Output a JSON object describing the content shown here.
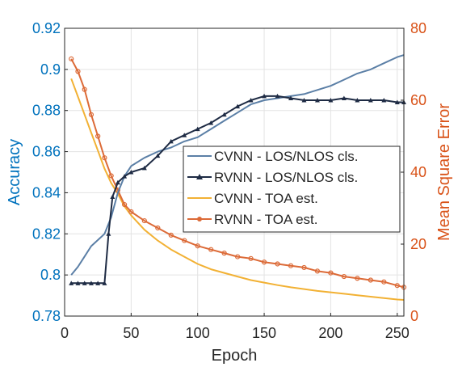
{
  "chart_data": {
    "type": "line",
    "xlabel": "Epoch",
    "ylabel_left": "Accuracy",
    "ylabel_right": "Mean Square Error",
    "xlim": [
      0,
      255
    ],
    "ylim_left": [
      0.78,
      0.92
    ],
    "ylim_right": [
      0,
      80
    ],
    "x_ticks": [
      "0",
      "50",
      "100",
      "150",
      "200",
      "250"
    ],
    "y_left_ticks": [
      "0.78",
      "0.8",
      "0.82",
      "0.84",
      "0.86",
      "0.88",
      "0.9",
      "0.92"
    ],
    "y_right_ticks": [
      "0",
      "20",
      "40",
      "60",
      "80"
    ],
    "grid": true,
    "legend_position": "center-right",
    "colors": {
      "left_axis": "#0072BD",
      "right_axis": "#D95319",
      "cvnn_los": "#5B7FA6",
      "rvnn_los": "#1E2B44",
      "cvnn_toa": "#F2B134",
      "rvnn_toa": "#DC6A37"
    },
    "series": [
      {
        "name": "CVNN - LOS/NLOS cls.",
        "axis": "left",
        "x": [
          5,
          10,
          15,
          20,
          25,
          30,
          35,
          40,
          45,
          50,
          60,
          70,
          80,
          90,
          100,
          110,
          120,
          130,
          140,
          150,
          160,
          170,
          180,
          190,
          200,
          210,
          220,
          230,
          240,
          250,
          255
        ],
        "y": [
          0.8,
          0.804,
          0.809,
          0.814,
          0.817,
          0.82,
          0.828,
          0.84,
          0.848,
          0.853,
          0.857,
          0.86,
          0.862,
          0.865,
          0.867,
          0.871,
          0.875,
          0.879,
          0.883,
          0.885,
          0.886,
          0.887,
          0.888,
          0.89,
          0.892,
          0.895,
          0.898,
          0.9,
          0.903,
          0.906,
          0.907
        ]
      },
      {
        "name": "RVNN - LOS/NLOS cls.",
        "axis": "left",
        "x": [
          5,
          10,
          15,
          20,
          25,
          30,
          33,
          36,
          40,
          45,
          50,
          60,
          70,
          80,
          90,
          100,
          110,
          120,
          130,
          140,
          150,
          160,
          170,
          180,
          190,
          200,
          210,
          220,
          230,
          240,
          250,
          255
        ],
        "y": [
          0.796,
          0.796,
          0.796,
          0.796,
          0.796,
          0.796,
          0.82,
          0.838,
          0.845,
          0.848,
          0.85,
          0.852,
          0.858,
          0.865,
          0.868,
          0.871,
          0.874,
          0.878,
          0.882,
          0.885,
          0.887,
          0.887,
          0.886,
          0.885,
          0.885,
          0.885,
          0.886,
          0.885,
          0.885,
          0.885,
          0.884,
          0.884
        ]
      },
      {
        "name": "CVNN - TOA est.",
        "axis": "right",
        "x": [
          5,
          10,
          15,
          20,
          25,
          30,
          35,
          40,
          45,
          50,
          60,
          70,
          80,
          90,
          100,
          110,
          120,
          130,
          140,
          150,
          160,
          170,
          180,
          190,
          200,
          210,
          220,
          230,
          240,
          250,
          255
        ],
        "y": [
          66,
          61,
          56,
          51,
          46,
          41,
          37,
          34,
          30.5,
          28,
          24,
          21,
          18.5,
          16.5,
          14.5,
          13,
          12,
          11,
          10,
          9.3,
          8.6,
          8,
          7.5,
          7,
          6.6,
          6.2,
          5.8,
          5.4,
          5,
          4.6,
          4.5
        ]
      },
      {
        "name": "RVNN - TOA est.",
        "axis": "right",
        "x": [
          5,
          10,
          15,
          20,
          25,
          30,
          35,
          40,
          45,
          50,
          60,
          70,
          80,
          90,
          100,
          110,
          120,
          130,
          140,
          150,
          160,
          170,
          180,
          190,
          200,
          210,
          220,
          230,
          240,
          250,
          255
        ],
        "y": [
          71.5,
          68,
          63,
          56,
          50,
          44,
          39,
          35,
          31,
          29,
          26.5,
          24.5,
          22.5,
          21,
          19.5,
          18.5,
          17.5,
          16.5,
          16,
          15,
          14.5,
          14,
          13.5,
          12.5,
          12,
          11,
          10.5,
          10,
          9.5,
          8.5,
          8
        ]
      }
    ]
  }
}
